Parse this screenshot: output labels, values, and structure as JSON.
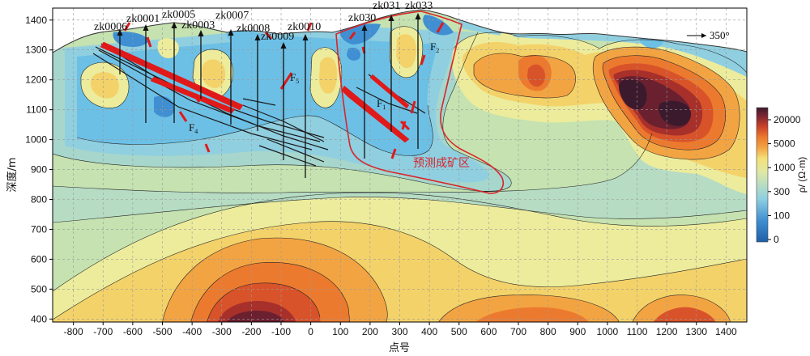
{
  "chart_data": {
    "type": "contour",
    "xlabel": "点号",
    "ylabel": "深度/m",
    "xlim": [
      -870,
      1470
    ],
    "ylim": [
      390,
      1440
    ],
    "x_ticks": [
      "-800",
      "-700",
      "-600",
      "-500",
      "-400",
      "-300",
      "-200",
      "-100",
      "0",
      "100",
      "200",
      "300",
      "400",
      "500",
      "600",
      "700",
      "800",
      "900",
      "1000",
      "1100",
      "1200",
      "1300",
      "1400"
    ],
    "y_ticks": [
      "400",
      "500",
      "600",
      "700",
      "800",
      "900",
      "1000",
      "1100",
      "1200",
      "1300",
      "1400"
    ],
    "colorbar": {
      "label": "ρ/ (Ω·m)",
      "ticks": [
        "20000",
        "5000",
        "1000",
        "300",
        "100",
        "0"
      ],
      "colors": [
        "#1f5fa8",
        "#3f8fd2",
        "#6cc0e6",
        "#a6d6cc",
        "#c8e2b4",
        "#ecec9c",
        "#f4d26a",
        "#f3a442",
        "#ec7a2e",
        "#d8532a",
        "#a8302a",
        "#6b2030",
        "#3a1a2c"
      ]
    },
    "direction": "350°",
    "drill_holes": [
      "zk0006",
      "zk0001",
      "zk0005",
      "zk0003",
      "zk0007",
      "zk0008",
      "zk0009",
      "zk0010",
      "zk030",
      "zk031",
      "zk033"
    ],
    "faults": [
      "F1",
      "F2",
      "F4",
      "F5"
    ],
    "zone_label": "预测成矿区"
  }
}
